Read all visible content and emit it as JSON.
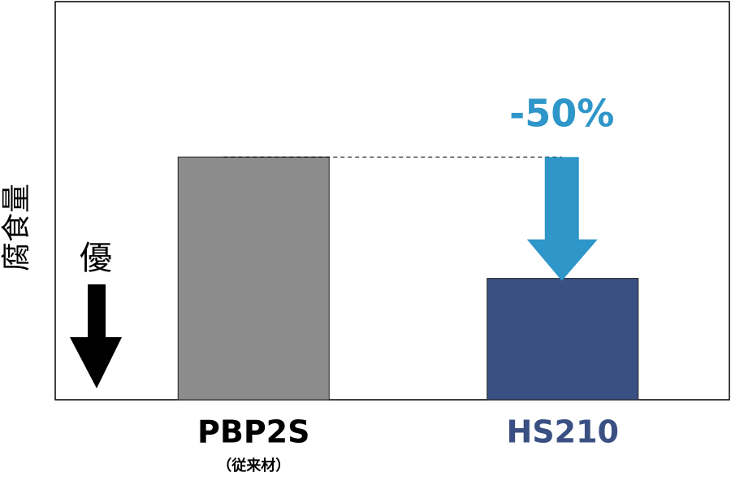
{
  "chart_data": {
    "type": "bar",
    "y_label": "腐食量",
    "categories": [
      "PBP2S",
      "HS210"
    ],
    "category_sublabels": [
      "（従来材）",
      null
    ],
    "values": [
      100,
      50
    ],
    "colors": [
      "#8c8c8c",
      "#3a5083"
    ],
    "label_colors": [
      "#000000",
      "#3a5083"
    ],
    "ylim": [
      0,
      164
    ],
    "annotations": {
      "better": "優",
      "change": "-50%",
      "change_color": "#2e96c8"
    }
  }
}
